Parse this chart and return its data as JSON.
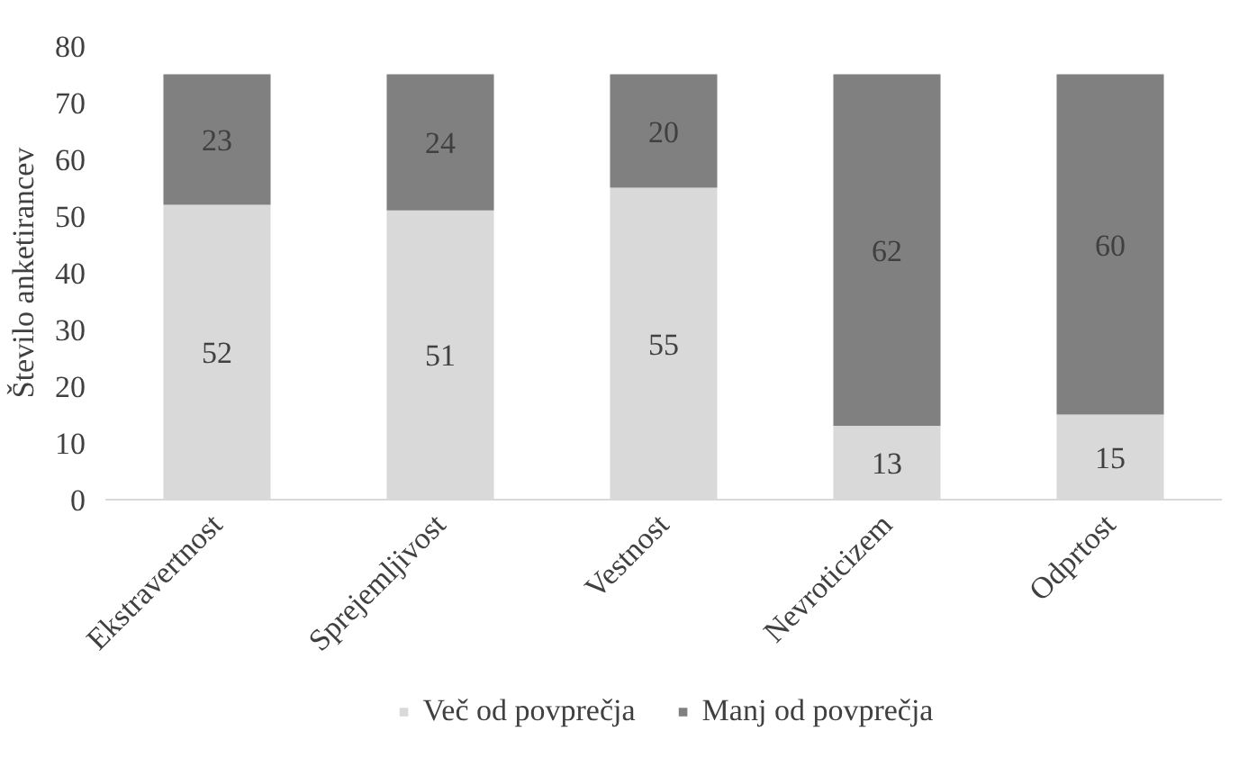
{
  "chart_data": {
    "type": "bar",
    "stacked": true,
    "ylabel": "Število anketirancev",
    "categories": [
      "Ekstravertnost",
      "Sprejemljivost",
      "Vestnost",
      "Nevroticizem",
      "Odprtost"
    ],
    "series": [
      {
        "name": "Več od povprečja",
        "color": "#d9d9d9",
        "values": [
          52,
          51,
          55,
          13,
          15
        ]
      },
      {
        "name": "Manj od povprečja",
        "color": "#808080",
        "values": [
          23,
          24,
          20,
          62,
          60
        ]
      }
    ],
    "ylim": [
      0,
      80
    ],
    "yticks": [
      0,
      10,
      20,
      30,
      40,
      50,
      60,
      70,
      80
    ],
    "grid": false,
    "legend": "bottom",
    "data_labels": true
  }
}
